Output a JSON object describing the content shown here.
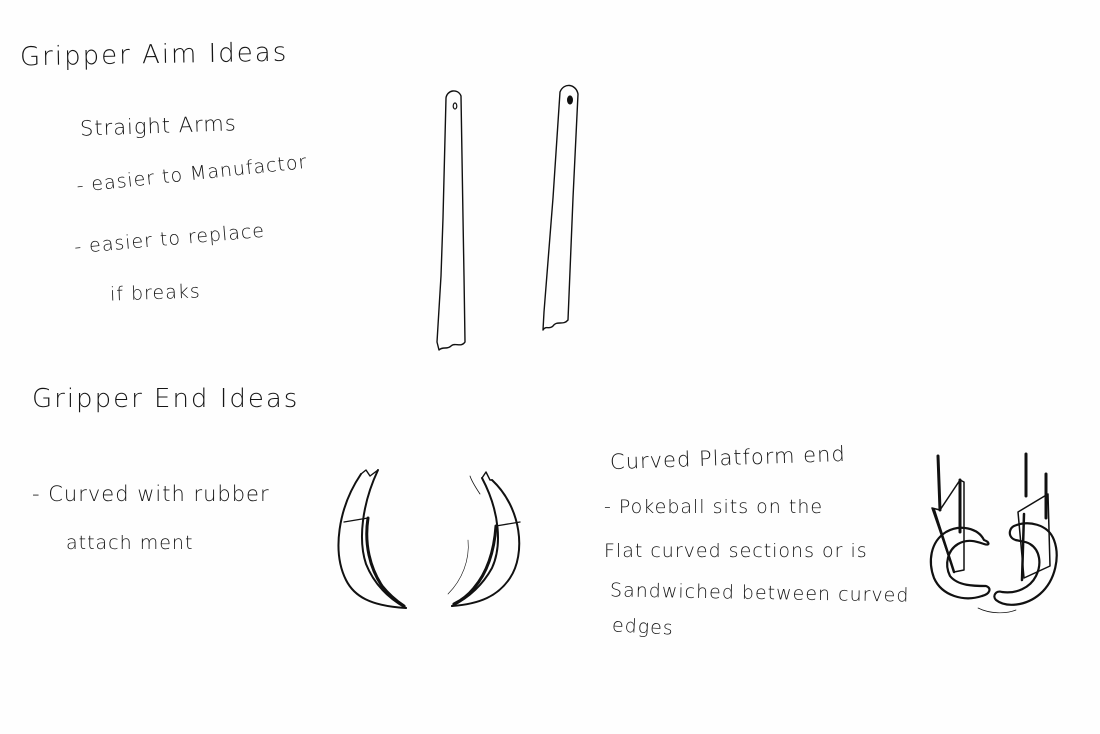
{
  "arm_section": {
    "title": "Gripper Aim Ideas",
    "subtitle": "Straight Arms",
    "bullets": [
      "- easier to Manufactor",
      "- easier to replace",
      "if breaks"
    ]
  },
  "end_section": {
    "title": "Gripper End Ideas",
    "rubber_note": {
      "line1": "- Curved with rubber",
      "line2": "attach ment"
    },
    "platform_note": {
      "heading": "Curved Platform end",
      "lines": [
        "- Pokeball sits on the",
        "Flat curved sections or is",
        "Sandwiched between curved",
        "edges"
      ]
    }
  },
  "colors": {
    "ink": "#111111",
    "paper": "#fefefe"
  }
}
